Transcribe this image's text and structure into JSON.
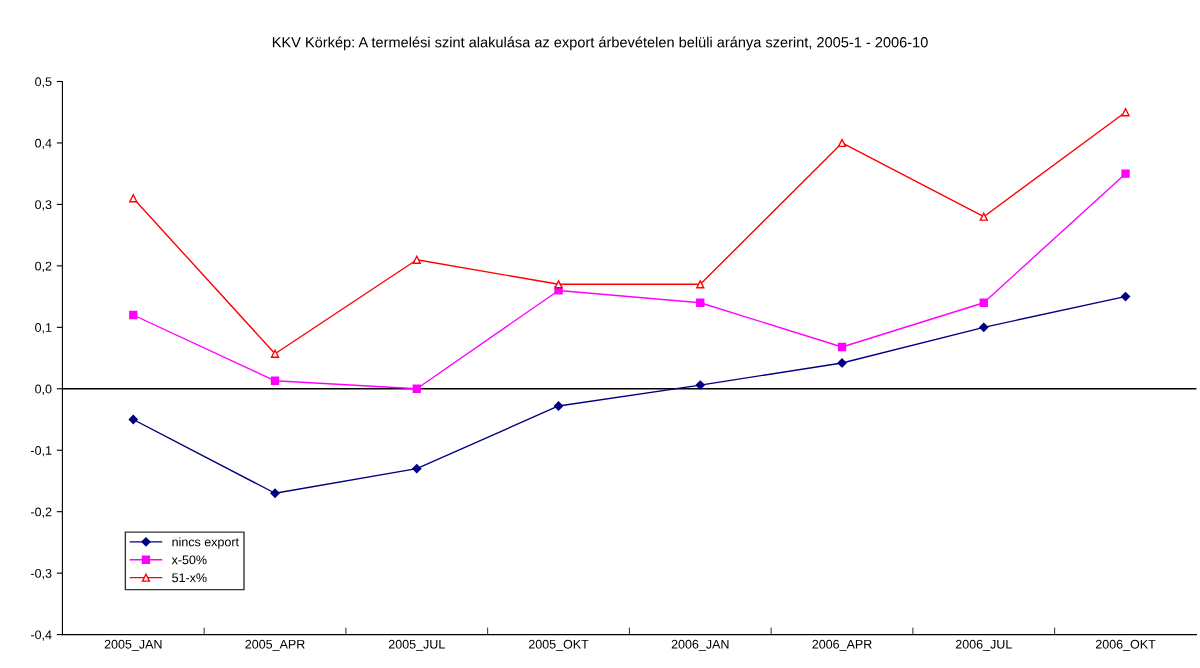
{
  "chart_data": {
    "type": "line",
    "title": "KKV Körkép: A termelési szint alakulása az export árbevételen belüli aránya szerint, 2005-1 - 2006-10",
    "categories": [
      "2005_JAN",
      "2005_APR",
      "2005_JUL",
      "2005_OKT",
      "2006_JAN",
      "2006_APR",
      "2006_JUL",
      "2006_OKT"
    ],
    "series": [
      {
        "name": "nincs export",
        "color": "#000080",
        "marker": "diamond",
        "values": [
          -0.05,
          -0.17,
          -0.13,
          -0.028,
          0.006,
          0.042,
          0.1,
          0.15
        ]
      },
      {
        "name": "x-50%",
        "color": "#ff00ff",
        "marker": "square",
        "values": [
          0.12,
          0.013,
          0.0,
          0.16,
          0.14,
          0.068,
          0.14,
          0.35
        ]
      },
      {
        "name": "51-x%",
        "color": "#ff0000",
        "marker": "triangle",
        "values": [
          0.31,
          0.057,
          0.21,
          0.17,
          0.17,
          0.4,
          0.28,
          0.45
        ]
      }
    ],
    "ylim": [
      -0.4,
      0.5
    ],
    "yticks": [
      {
        "value": -0.4,
        "label": "-0,4"
      },
      {
        "value": -0.3,
        "label": "-0,3"
      },
      {
        "value": -0.2,
        "label": "-0,2"
      },
      {
        "value": -0.1,
        "label": "-0,1"
      },
      {
        "value": 0.0,
        "label": "0,0"
      },
      {
        "value": 0.1,
        "label": "0,1"
      },
      {
        "value": 0.2,
        "label": "0,2"
      },
      {
        "value": 0.3,
        "label": "0,3"
      },
      {
        "value": 0.4,
        "label": "0,4"
      },
      {
        "value": 0.5,
        "label": "0,5"
      }
    ],
    "ref_lines": [
      {
        "axis": "y",
        "value": 0.0,
        "color": "#000000"
      }
    ],
    "grid": false,
    "legend": "bottom left"
  }
}
